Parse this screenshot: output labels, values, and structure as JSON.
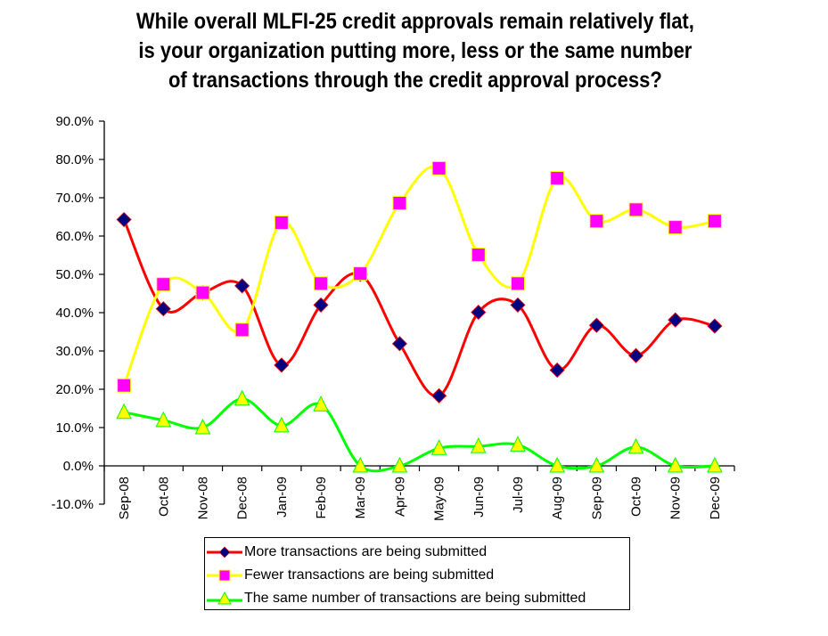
{
  "chart_data": {
    "type": "line",
    "title_lines": [
      "While overall MLFI-25 credit approvals remain relatively flat,",
      "is your organization putting more, less or the same number",
      "of transactions through the credit approval process?"
    ],
    "xlabel": "",
    "ylabel": "",
    "categories": [
      "Sep-08",
      "Oct-08",
      "Nov-08",
      "Dec-08",
      "Jan-09",
      "Feb-09",
      "Mar-09",
      "Apr-09",
      "May-09",
      "Jun-09",
      "Jul-09",
      "Aug-09",
      "Sep-09",
      "Oct-09",
      "Nov-09",
      "Dec-09"
    ],
    "ylim": [
      -10,
      90
    ],
    "y_ticks": [
      -10,
      0,
      10,
      20,
      30,
      40,
      50,
      60,
      70,
      80,
      90
    ],
    "y_tick_labels": [
      "-10.0%",
      "0.0%",
      "10.0%",
      "20.0%",
      "30.0%",
      "40.0%",
      "50.0%",
      "60.0%",
      "70.0%",
      "80.0%",
      "90.0%"
    ],
    "grid": false,
    "smoothed": true,
    "legend_position": "bottom",
    "series": [
      {
        "name": "More transactions are being submitted",
        "line_color": "#ff0000",
        "marker": "diamond",
        "marker_fill": "#000080",
        "marker_stroke": "#ff0000",
        "values": [
          64.3,
          41.0,
          45.2,
          47.0,
          26.3,
          42.0,
          50.0,
          31.9,
          18.3,
          40.1,
          42.0,
          25.0,
          36.7,
          28.8,
          38.1,
          36.5
        ]
      },
      {
        "name": "Fewer transactions are being submitted",
        "line_color": "#ffff00",
        "marker": "square",
        "marker_fill": "#ff00ff",
        "marker_stroke": "#ffff00",
        "values": [
          21.0,
          47.4,
          45.2,
          35.5,
          63.5,
          47.6,
          50.2,
          68.6,
          77.7,
          55.1,
          47.6,
          75.1,
          63.9,
          66.9,
          62.3,
          63.9
        ]
      },
      {
        "name": "The same number of transactions are being submitted",
        "line_color": "#00ff00",
        "marker": "triangle",
        "marker_fill": "#ffff00",
        "marker_stroke": "#00ff00",
        "values": [
          14.0,
          11.9,
          10.0,
          17.5,
          10.5,
          16.0,
          0.0,
          0.0,
          4.6,
          5.1,
          5.5,
          0.0,
          0.0,
          4.9,
          0.0,
          0.0
        ]
      }
    ]
  }
}
